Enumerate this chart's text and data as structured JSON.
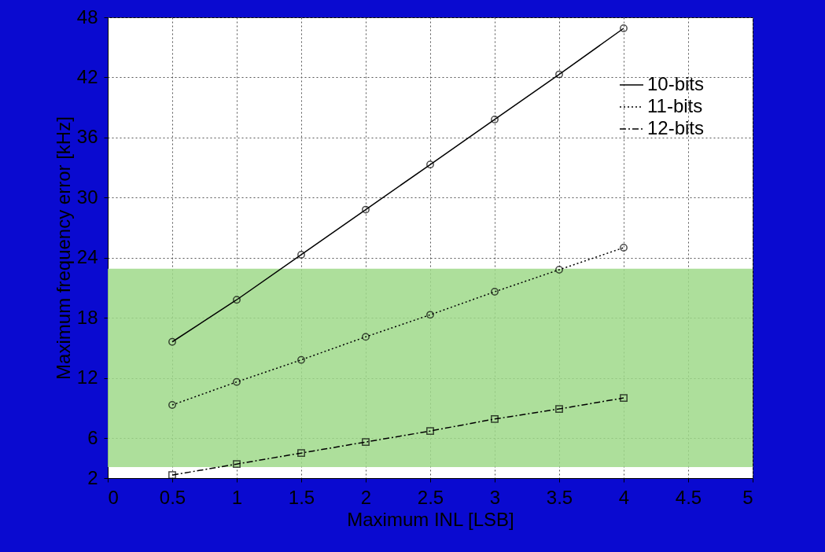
{
  "chart_data": {
    "type": "line",
    "xlabel": "Maximum INL [LSB]",
    "ylabel": "Maximum frequency error [kHz]",
    "x": [
      0.5,
      1,
      1.5,
      2,
      2.5,
      3,
      3.5,
      4
    ],
    "series": [
      {
        "name": "10-bits",
        "color": "#000000",
        "marker": "circle",
        "line_style": "solid",
        "values": [
          15.6,
          19.8,
          24.3,
          28.8,
          33.3,
          37.8,
          42.3,
          46.9
        ]
      },
      {
        "name": "11-bits",
        "color": "#000000",
        "marker": "circle",
        "line_style": "dotted",
        "values": [
          9.3,
          11.6,
          13.8,
          16.1,
          18.3,
          20.6,
          22.8,
          25.0
        ]
      },
      {
        "name": "12-bits",
        "color": "#000000",
        "marker": "square",
        "line_style": "dashdot",
        "values": [
          2.3,
          3.4,
          4.5,
          5.6,
          6.7,
          7.9,
          8.9,
          10.0
        ]
      }
    ],
    "xlim": [
      0,
      5
    ],
    "xticks": [
      0,
      0.5,
      1,
      1.5,
      2,
      2.5,
      3,
      3.5,
      4,
      4.5,
      5
    ],
    "ylim": [
      2,
      48
    ],
    "yticks": [
      2,
      6,
      12,
      18,
      24,
      30,
      36,
      42,
      48
    ],
    "bands": [
      {
        "axis": "y",
        "from": 3.1,
        "to": 22.9,
        "color": "#9fd98a"
      }
    ],
    "grid": true,
    "legend": "top right"
  }
}
